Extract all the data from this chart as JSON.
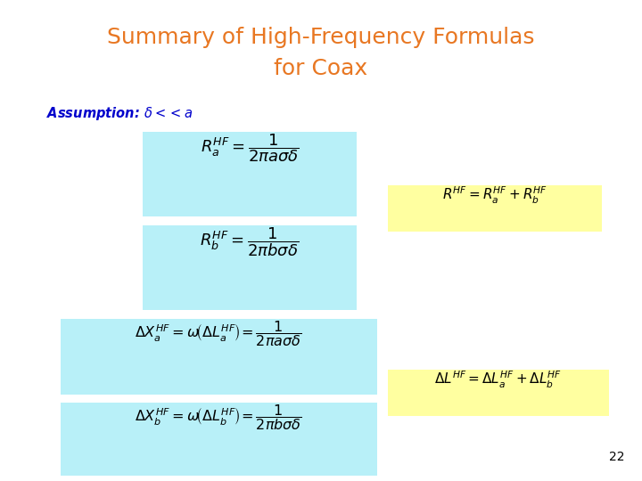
{
  "title_line1": "Summary of High-Frequency Formulas",
  "title_line2": "for Coax",
  "title_color": "#E87722",
  "background_color": "#FFFFFF",
  "assumption_color": "#0000CC",
  "box_color_cyan": "#B8F0F8",
  "box_color_yellow": "#FFFFA0",
  "page_number": "22",
  "title_fontsize": 18,
  "formula_fontsize": 13,
  "formula_sum_fontsize": 11
}
